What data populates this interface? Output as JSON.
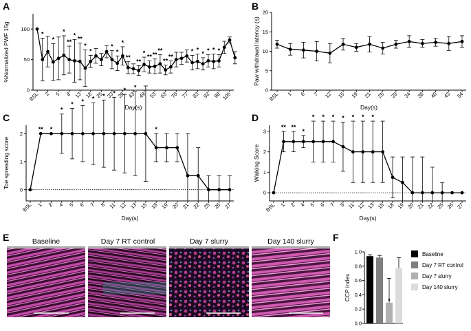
{
  "figure": {
    "panel_letters": [
      "A",
      "B",
      "C",
      "D",
      "E",
      "F"
    ]
  },
  "chart_data": [
    {
      "id": "A",
      "type": "line",
      "ylabel": "%Normalized PWF 15g",
      "xlabel": "Day(s)",
      "ylim": [
        0,
        125
      ],
      "yticks": [
        0,
        50,
        100
      ],
      "categories": [
        "BSL",
        "2",
        "5",
        "8",
        "13",
        "18",
        "25",
        "33",
        "39",
        "43",
        "49",
        "53",
        "63",
        "70",
        "77",
        "83",
        "92",
        "98",
        "105"
      ],
      "points": [
        {
          "x": 0,
          "y": 100,
          "err": 0,
          "star": ""
        },
        {
          "x": 0.5,
          "y": 50,
          "err": 35,
          "star": "*"
        },
        {
          "x": 1,
          "y": 63,
          "err": 25,
          "star": ""
        },
        {
          "x": 1.5,
          "y": 46,
          "err": 30,
          "star": "*"
        },
        {
          "x": 2,
          "y": 52,
          "err": 35,
          "star": ""
        },
        {
          "x": 2.5,
          "y": 57,
          "err": 32,
          "star": "*"
        },
        {
          "x": 3,
          "y": 50,
          "err": 22,
          "star": "**"
        },
        {
          "x": 3.5,
          "y": 48,
          "err": 35,
          "star": "*"
        },
        {
          "x": 4,
          "y": 47,
          "err": 30,
          "star": "**"
        },
        {
          "x": 4.5,
          "y": 36,
          "err": 30,
          "star": "*"
        },
        {
          "x": 5,
          "y": 47,
          "err": 10,
          "star": "*"
        },
        {
          "x": 5.5,
          "y": 56,
          "err": 12,
          "star": ""
        },
        {
          "x": 6,
          "y": 50,
          "err": 10,
          "star": ""
        },
        {
          "x": 6.5,
          "y": 63,
          "err": 10,
          "star": ""
        },
        {
          "x": 7,
          "y": 50,
          "err": 15,
          "star": "*"
        },
        {
          "x": 7.5,
          "y": 44,
          "err": 12,
          "star": "*"
        },
        {
          "x": 8,
          "y": 56,
          "err": 15,
          "star": "*"
        },
        {
          "x": 8.5,
          "y": 37,
          "err": 10,
          "star": "**"
        },
        {
          "x": 9,
          "y": 35,
          "err": 8,
          "star": ""
        },
        {
          "x": 9.5,
          "y": 32,
          "err": 8,
          "star": "**"
        },
        {
          "x": 10,
          "y": 42,
          "err": 12,
          "star": "*"
        },
        {
          "x": 10.5,
          "y": 38,
          "err": 10,
          "star": "**"
        },
        {
          "x": 11,
          "y": 39,
          "err": 12,
          "star": "**"
        },
        {
          "x": 11.5,
          "y": 43,
          "err": 15,
          "star": "**"
        },
        {
          "x": 12,
          "y": 33,
          "err": 8,
          "star": "**"
        },
        {
          "x": 12.5,
          "y": 38,
          "err": 10,
          "star": "**"
        },
        {
          "x": 13,
          "y": 50,
          "err": 12,
          "star": ""
        },
        {
          "x": 13.5,
          "y": 52,
          "err": 10,
          "star": ""
        },
        {
          "x": 14,
          "y": 56,
          "err": 10,
          "star": ""
        },
        {
          "x": 14.5,
          "y": 45,
          "err": 12,
          "star": "*"
        },
        {
          "x": 15,
          "y": 47,
          "err": 12,
          "star": "*"
        },
        {
          "x": 15.5,
          "y": 43,
          "err": 10,
          "star": "*"
        },
        {
          "x": 16,
          "y": 48,
          "err": 10,
          "star": "*"
        },
        {
          "x": 16.5,
          "y": 47,
          "err": 12,
          "star": "*"
        },
        {
          "x": 17,
          "y": 48,
          "err": 10,
          "star": "*"
        },
        {
          "x": 17.5,
          "y": 70,
          "err": 10,
          "star": ""
        },
        {
          "x": 18,
          "y": 82,
          "err": 5,
          "star": ""
        },
        {
          "x": 18.5,
          "y": 53,
          "err": 10,
          "star": ""
        }
      ]
    },
    {
      "id": "B",
      "type": "line",
      "ylabel": "Paw withdrawal latency (s)",
      "xlabel": "Day(s)",
      "ylim": [
        0,
        20
      ],
      "yticks": [
        0,
        5,
        10,
        15,
        20
      ],
      "categories": [
        "BSL",
        "1",
        "6",
        "7",
        "12",
        "15",
        "19",
        "21",
        "25",
        "28",
        "34",
        "36",
        "40",
        "43",
        "54"
      ],
      "values": [
        11.8,
        10.5,
        10.3,
        10.0,
        9.5,
        11.8,
        11.0,
        11.8,
        10.8,
        11.8,
        12.5,
        12.0,
        12.3,
        12.0,
        12.5
      ],
      "errors": [
        1.0,
        1.5,
        2.0,
        2.5,
        2.5,
        1.5,
        1.0,
        2.0,
        1.5,
        1.0,
        1.5,
        1.0,
        1.0,
        1.8,
        1.5
      ]
    },
    {
      "id": "C",
      "type": "line",
      "ylabel": "Toe spreading score",
      "xlabel": "Day(s)",
      "ylim": [
        -0.4,
        2.3
      ],
      "yticks": [
        0,
        1,
        2
      ],
      "categories": [
        "BSL",
        "1",
        "2",
        "4",
        "5",
        "6",
        "7",
        "8",
        "11",
        "12",
        "13",
        "15",
        "18",
        "19",
        "20",
        "21",
        "22",
        "25",
        "26",
        "27"
      ],
      "values": [
        0,
        2,
        2,
        2,
        2,
        2,
        2,
        2,
        2,
        2,
        2,
        2,
        1.5,
        1.5,
        1.5,
        0.5,
        0.5,
        0,
        0,
        0
      ],
      "errors": [
        0,
        0,
        0,
        0.7,
        0.9,
        1.0,
        1.1,
        1.2,
        1.3,
        1.4,
        1.5,
        1.7,
        0.5,
        0.5,
        0.5,
        1.5,
        1.0,
        0.5,
        0.5,
        0.5
      ],
      "stars": [
        "",
        "**",
        "*",
        "*",
        "*",
        "*",
        "*",
        "*",
        "*",
        "*",
        "*",
        "",
        "*",
        "",
        "",
        "",
        "",
        "",
        "",
        ""
      ]
    },
    {
      "id": "D",
      "type": "line",
      "ylabel": "Walking Score",
      "xlabel": "Day(s)",
      "ylim": [
        -0.4,
        3.3
      ],
      "yticks": [
        0,
        1,
        2,
        3
      ],
      "categories": [
        "BSL",
        "1",
        "2",
        "4",
        "5",
        "6",
        "7",
        "8",
        "11",
        "12",
        "13",
        "15",
        "18",
        "19",
        "20",
        "21",
        "22",
        "25",
        "26",
        "27"
      ],
      "values": [
        0,
        2.5,
        2.5,
        2.5,
        2.5,
        2.5,
        2.5,
        2.25,
        2.0,
        2.0,
        2.0,
        2.0,
        0.75,
        0.5,
        0,
        0,
        0,
        0,
        0,
        0
      ],
      "errors": [
        0,
        0.5,
        0.5,
        0.3,
        1.0,
        1.0,
        1.0,
        1.2,
        1.5,
        1.5,
        1.5,
        1.5,
        1.0,
        1.25,
        1.75,
        1.75,
        1.25,
        0.5,
        0,
        0
      ],
      "stars": [
        "",
        "**",
        "**",
        "*",
        "*",
        "*",
        "*",
        "*",
        "*",
        "*",
        "*",
        "",
        "",
        "",
        "",
        "",
        "",
        "",
        "",
        ""
      ]
    },
    {
      "id": "F",
      "type": "bar",
      "ylabel": "CCP index",
      "ylim": [
        0,
        1.0
      ],
      "yticks": [
        "0.0",
        "0.2",
        "0.4",
        "0.6",
        "0.8",
        "1.0"
      ],
      "categories": [
        "Baseline",
        "Day 7 RT control",
        "Day 7 slurry",
        "Day 140 slurry"
      ],
      "values": [
        0.94,
        0.92,
        0.29,
        0.77
      ],
      "errors": [
        0.02,
        0.03,
        0.34,
        0.15
      ],
      "colors": [
        "#000000",
        "#7f7f7f",
        "#b0b0b0",
        "#dcdcdc"
      ],
      "stars": [
        "",
        "",
        "*",
        ""
      ]
    }
  ],
  "images": {
    "titles": [
      "Baseline",
      "Day 7 RT control",
      "Day 7 slurry",
      "Day 140 slurry"
    ]
  }
}
